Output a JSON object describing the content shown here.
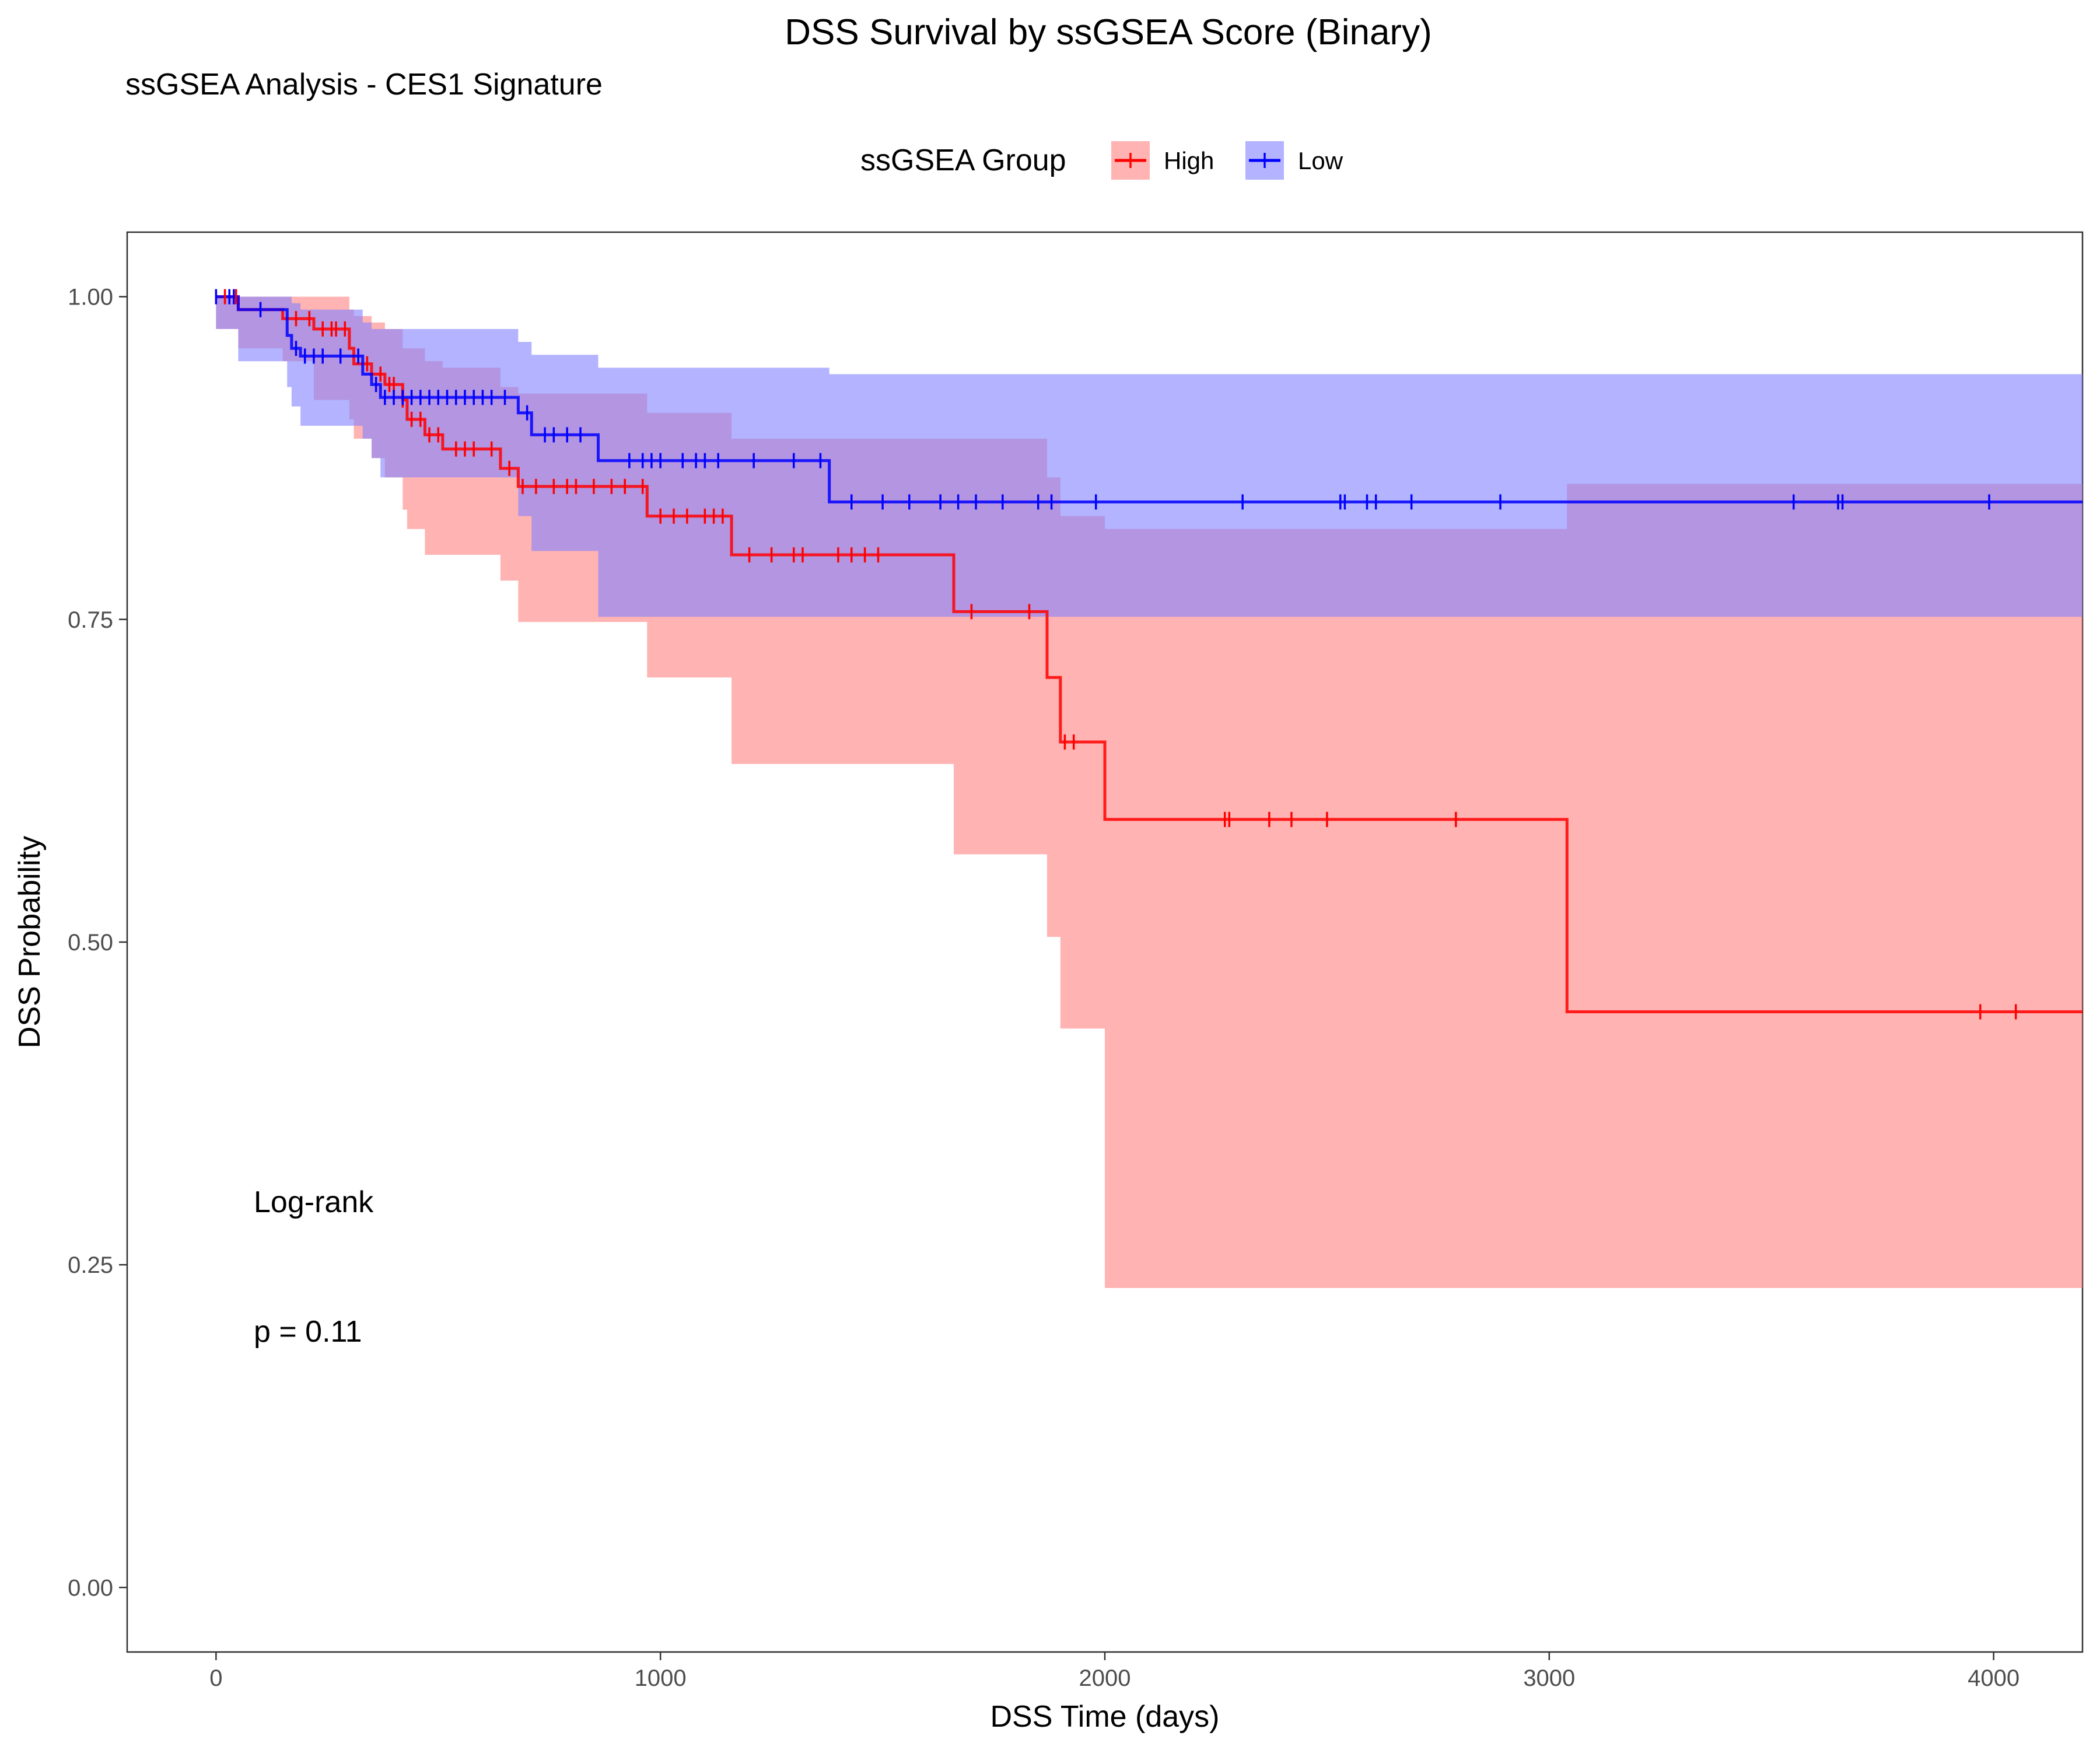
{
  "chart_data": {
    "type": "line",
    "title": "DSS Survival by ssGSEA Score (Binary)",
    "subtitle": "ssGSEA Analysis - CES1 Signature",
    "xlabel": "DSS Time (days)",
    "ylabel": "DSS Probability",
    "xlim": [
      -200,
      4200
    ],
    "ylim": [
      -0.05,
      1.05
    ],
    "xticks": [
      0,
      1000,
      2000,
      3000,
      4000
    ],
    "xtick_labels": [
      "0",
      "1000",
      "2000",
      "3000",
      "4000"
    ],
    "yticks": [
      0,
      0.25,
      0.5,
      0.75,
      1.0
    ],
    "ytick_labels": [
      "0.00",
      "0.25",
      "0.50",
      "0.75",
      "1.00"
    ],
    "grid": false,
    "legend": {
      "title": "ssGSEA Group",
      "placement": "top",
      "entries": [
        "High",
        "Low"
      ]
    },
    "annotations": [
      "Log-rank",
      "p = 0.11"
    ],
    "series": [
      {
        "name": "High",
        "color": "#ff0000",
        "band_color": "#ff8080",
        "steps": [
          [
            0,
            1.0
          ],
          [
            50,
            0.99
          ],
          [
            150,
            0.983
          ],
          [
            220,
            0.975
          ],
          [
            300,
            0.96
          ],
          [
            310,
            0.948
          ],
          [
            350,
            0.94
          ],
          [
            380,
            0.932
          ],
          [
            420,
            0.92
          ],
          [
            430,
            0.905
          ],
          [
            470,
            0.893
          ],
          [
            510,
            0.882
          ],
          [
            640,
            0.867
          ],
          [
            680,
            0.853
          ],
          [
            970,
            0.83
          ],
          [
            1160,
            0.8
          ],
          [
            1660,
            0.756
          ],
          [
            1870,
            0.705
          ],
          [
            1900,
            0.655
          ],
          [
            2000,
            0.595
          ],
          [
            3040,
            0.446
          ],
          [
            4200,
            0.446
          ]
        ],
        "lower": [
          0.975,
          0.975,
          0.96,
          0.95,
          0.92,
          0.905,
          0.89,
          0.875,
          0.86,
          0.835,
          0.82,
          0.8,
          0.8,
          0.78,
          0.748,
          0.705,
          0.638,
          0.568,
          0.504,
          0.433,
          0.232,
          0.232
        ],
        "upper": [
          1.0,
          1.0,
          1.0,
          1.0,
          0.99,
          0.985,
          0.98,
          0.975,
          0.96,
          0.96,
          0.95,
          0.945,
          0.93,
          0.925,
          0.91,
          0.89,
          0.89,
          0.86,
          0.83,
          0.82,
          0.855,
          0.855
        ],
        "censor_times": [
          20,
          45,
          180,
          210,
          240,
          260,
          270,
          290,
          340,
          370,
          390,
          400,
          420,
          440,
          460,
          480,
          500,
          540,
          560,
          580,
          620,
          660,
          690,
          720,
          760,
          790,
          810,
          850,
          890,
          920,
          960,
          1000,
          1030,
          1060,
          1100,
          1120,
          1140,
          1200,
          1250,
          1300,
          1320,
          1400,
          1430,
          1460,
          1490,
          1700,
          1830,
          1910,
          1930,
          2270,
          2280,
          2370,
          2420,
          2500,
          2790,
          3970,
          4050
        ]
      },
      {
        "name": "Low",
        "color": "#0000ff",
        "band_color": "#8080ff",
        "steps": [
          [
            0,
            1.0
          ],
          [
            50,
            0.99
          ],
          [
            160,
            0.97
          ],
          [
            170,
            0.96
          ],
          [
            190,
            0.954
          ],
          [
            330,
            0.94
          ],
          [
            350,
            0.932
          ],
          [
            370,
            0.922
          ],
          [
            680,
            0.91
          ],
          [
            710,
            0.893
          ],
          [
            860,
            0.873
          ],
          [
            1380,
            0.841
          ],
          [
            4200,
            0.841
          ]
        ],
        "lower": [
          0.975,
          0.975,
          0.95,
          0.93,
          0.915,
          0.9,
          0.89,
          0.875,
          0.86,
          0.83,
          0.803,
          0.752,
          0.752
        ],
        "upper": [
          1.0,
          1.0,
          1.0,
          0.995,
          0.99,
          0.98,
          0.975,
          0.975,
          0.965,
          0.955,
          0.945,
          0.94,
          0.94
        ],
        "censor_times": [
          0,
          30,
          40,
          100,
          180,
          200,
          220,
          240,
          280,
          320,
          360,
          380,
          400,
          420,
          440,
          460,
          480,
          500,
          520,
          540,
          560,
          580,
          600,
          620,
          650,
          700,
          740,
          760,
          790,
          820,
          930,
          960,
          980,
          1000,
          1050,
          1080,
          1100,
          1130,
          1210,
          1300,
          1360,
          1430,
          1500,
          1560,
          1630,
          1670,
          1710,
          1770,
          1850,
          1880,
          1980,
          2310,
          2530,
          2540,
          2590,
          2610,
          2690,
          2890,
          3550,
          3650,
          3660,
          3990
        ]
      }
    ]
  }
}
